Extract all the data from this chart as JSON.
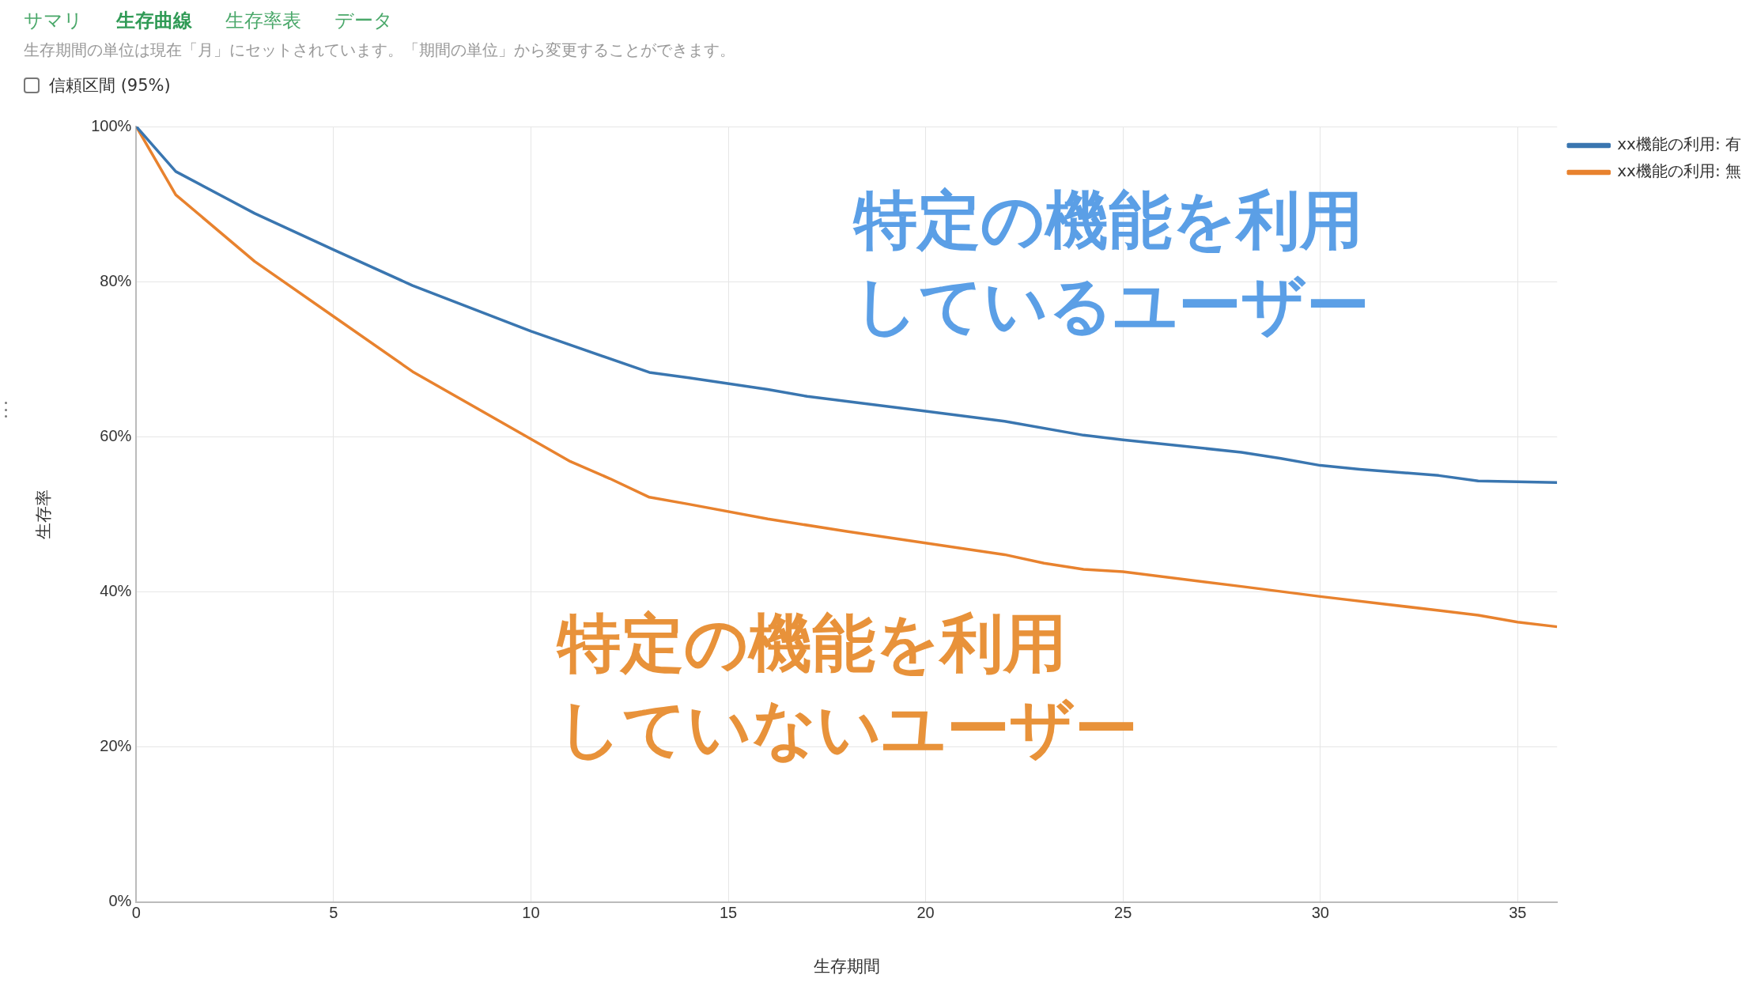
{
  "chart_data": {
    "type": "line",
    "xlabel": "生存期間",
    "ylabel": "生存率",
    "annotations": [
      "サマリ",
      "生存曲線",
      "生存率表",
      "データ",
      "生存期間の単位は現在「月」にセットされています。「期間の単位」から変更することができます。",
      "信頼区間 (95%)",
      "特定の機能を利用しているユーザー",
      "特定の機能を利用していないユーザー"
    ],
    "series": [
      {
        "name": "xx機能の利用: 有",
        "color": "#3a76b0",
        "x": [
          0,
          1,
          3,
          5,
          7,
          10,
          13,
          14,
          16,
          17,
          20,
          22,
          24,
          25,
          28,
          29,
          30,
          31,
          33,
          34,
          36
        ],
        "values": [
          100,
          94.2,
          88.8,
          84.1,
          79.5,
          73.6,
          68.3,
          67.6,
          66.1,
          65.2,
          63.3,
          62,
          60.2,
          59.6,
          58,
          57.2,
          56.3,
          55.8,
          55,
          54.3,
          54.1
        ]
      },
      {
        "name": "xx機能の利用: 無",
        "color": "#e8822e",
        "x": [
          0,
          1,
          3,
          5,
          7,
          10,
          11,
          12,
          13,
          14,
          16,
          18,
          20,
          22,
          23,
          24,
          25,
          28,
          30,
          33,
          34,
          35,
          36
        ],
        "values": [
          100,
          91.2,
          82.6,
          75.5,
          68.4,
          59.7,
          56.8,
          54.6,
          52.2,
          51.3,
          49.4,
          47.8,
          46.3,
          44.8,
          43.7,
          42.9,
          42.6,
          40.7,
          39.4,
          37.6,
          37,
          36.1,
          35.5
        ]
      }
    ],
    "xlim": [
      0,
      36
    ],
    "xticks": [
      0,
      5,
      10,
      15,
      20,
      25,
      30,
      35
    ],
    "ylim": [
      0,
      100
    ],
    "yticks": [
      {
        "value": 0,
        "label": "0%"
      },
      {
        "value": 20,
        "label": "20%"
      },
      {
        "value": 40,
        "label": "40%"
      },
      {
        "value": 60,
        "label": "60%"
      },
      {
        "value": 80,
        "label": "80%"
      },
      {
        "value": 100,
        "label": "100%"
      }
    ],
    "grid": true,
    "legend": "top right",
    "marker": "none",
    "line_style": "solid"
  }
}
